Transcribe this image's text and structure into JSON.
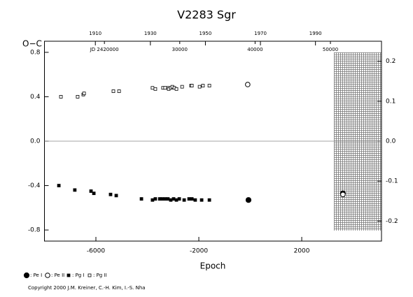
{
  "chart_data": {
    "type": "scatter",
    "title": "V2283 Sgr",
    "x_label": "Epoch",
    "y_label": "O−C",
    "footnote": "Copyright 2000 J.M. Kreiner, C.-H. Kim, I.-S. Nha",
    "xlim": [
      -8000,
      5100
    ],
    "xticks": [
      -6000,
      -2000,
      2000
    ],
    "ylim": [
      -0.9,
      0.9
    ],
    "yticks": [
      -0.8,
      -0.4,
      {
        "value": 0,
        "label": "0.0"
      },
      0.4,
      0.8
    ],
    "y2lim": [
      -0.25,
      0.25
    ],
    "y2ticks": [
      -0.2,
      -0.1,
      {
        "value": 0,
        "label": "0.0"
      },
      0.1,
      0.2
    ],
    "x2lim": [
      1891.5,
      2014
    ],
    "x2ticks": [
      1910,
      1930,
      1950,
      1970,
      1990
    ],
    "jdlim": [
      2412040,
      2456780
    ],
    "jdticks": [
      {
        "value": 2420000,
        "label": "JD 2420000"
      },
      {
        "value": 2430000,
        "label": "30000"
      },
      {
        "value": 2440000,
        "label": "40000"
      },
      {
        "value": 2450000,
        "label": "50000"
      }
    ],
    "zero_line": true,
    "series": [
      {
        "name": ": Pe I",
        "color": "#000000",
        "marker": "circle",
        "filled": true,
        "x": [
          -70,
          3600
        ],
        "values": [
          -0.53,
          -0.47
        ]
      },
      {
        "name": ": Pe II",
        "color": "#000000",
        "marker": "circle",
        "filled": false,
        "x": [
          -100,
          3600
        ],
        "values": [
          0.51,
          -0.48
        ]
      },
      {
        "name": ": Pg I",
        "color": "#000000",
        "marker": "square",
        "filled": true,
        "x": [
          -7440,
          -6820,
          -6190,
          -6080,
          -5430,
          -5210,
          -4230,
          -3800,
          -3690,
          -3520,
          -3420,
          -3310,
          -3200,
          -3090,
          -2980,
          -2870,
          -2760,
          -2570,
          -2380,
          -2270,
          -2140,
          -1890,
          -1590
        ],
        "values": [
          -0.4,
          -0.44,
          -0.45,
          -0.47,
          -0.48,
          -0.49,
          -0.52,
          -0.53,
          -0.52,
          -0.52,
          -0.52,
          -0.52,
          -0.52,
          -0.53,
          -0.52,
          -0.53,
          -0.52,
          -0.53,
          -0.52,
          -0.52,
          -0.53,
          -0.53,
          -0.53
        ]
      },
      {
        "name": ": Pg II",
        "color": "#000000",
        "marker": "square",
        "filled": false,
        "x": [
          -7360,
          -6710,
          -6490,
          -6460,
          -5320,
          -5100,
          -3800,
          -3690,
          -3390,
          -3310,
          -3200,
          -3170,
          -3090,
          -3030,
          -2950,
          -2870,
          -2650,
          -2300,
          -2270,
          -1970,
          -1840,
          -1590
        ],
        "values": [
          0.4,
          0.4,
          0.42,
          0.43,
          0.45,
          0.45,
          0.48,
          0.47,
          0.48,
          0.48,
          0.48,
          0.47,
          0.48,
          0.49,
          0.48,
          0.47,
          0.49,
          0.5,
          0.5,
          0.49,
          0.5,
          0.5
        ]
      }
    ]
  }
}
